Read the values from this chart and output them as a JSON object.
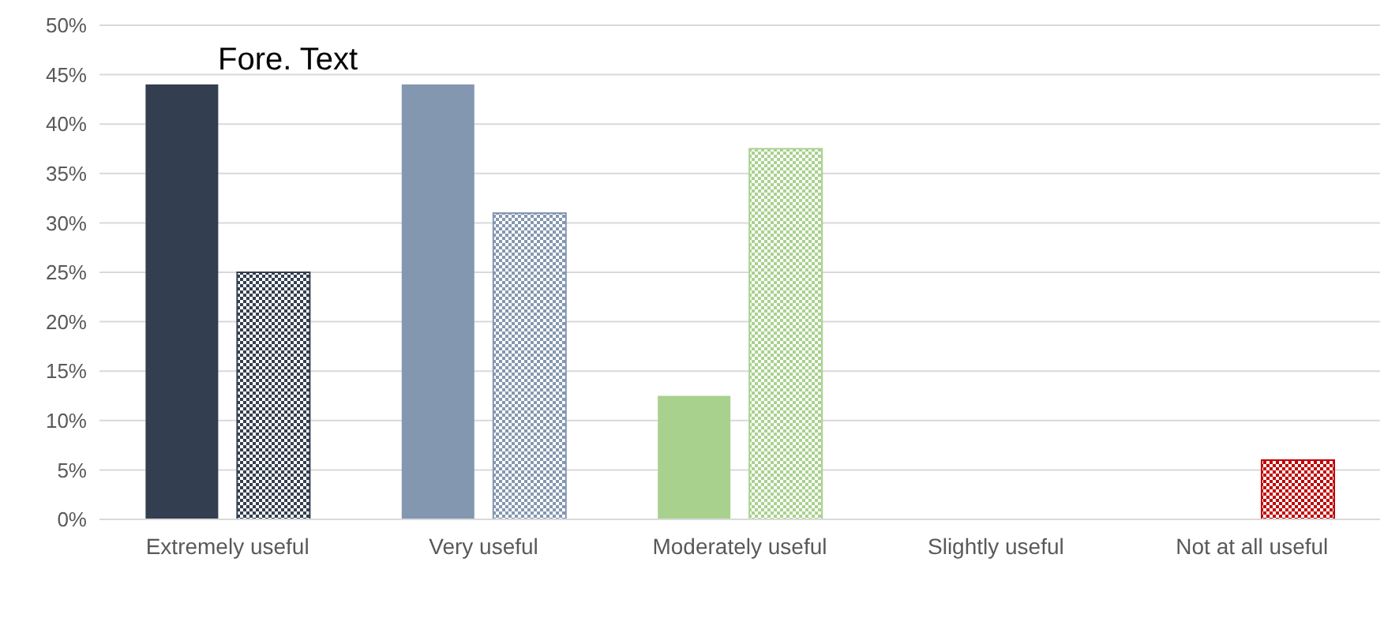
{
  "chart_data": {
    "type": "bar",
    "categories": [
      "Extremely useful",
      "Very useful",
      "Moderately useful",
      "Slightly useful",
      "Not at all useful"
    ],
    "series": [
      {
        "type": "bar",
        "colors": [
          "#333f50",
          "#8497b0",
          "#a9d18e",
          "#a9d18e",
          "#c00000"
        ],
        "values": [
          44,
          44,
          12.5,
          0,
          0
        ]
      },
      {
        "type": "bar",
        "colors": [
          "#333f50",
          "#8497b0",
          "#a9d18e",
          "#a9d18e",
          "#c00000"
        ],
        "values": [
          25,
          31,
          37.5,
          0,
          6
        ]
      }
    ],
    "ylim": [
      0,
      50
    ],
    "yticks": [
      {
        "value": 0,
        "label": "0%"
      },
      {
        "value": 5,
        "label": "5%"
      },
      {
        "value": 10,
        "label": "10%"
      },
      {
        "value": 15,
        "label": "15%"
      },
      {
        "value": 20,
        "label": "20%"
      },
      {
        "value": 25,
        "label": "25%"
      },
      {
        "value": 30,
        "label": "30%"
      },
      {
        "value": 35,
        "label": "35%"
      },
      {
        "value": 40,
        "label": "40%"
      },
      {
        "value": 45,
        "label": "45%"
      },
      {
        "value": 50,
        "label": "50%"
      }
    ],
    "grid": "y",
    "legend": false,
    "annotations": [
      "Fore. Text"
    ]
  }
}
